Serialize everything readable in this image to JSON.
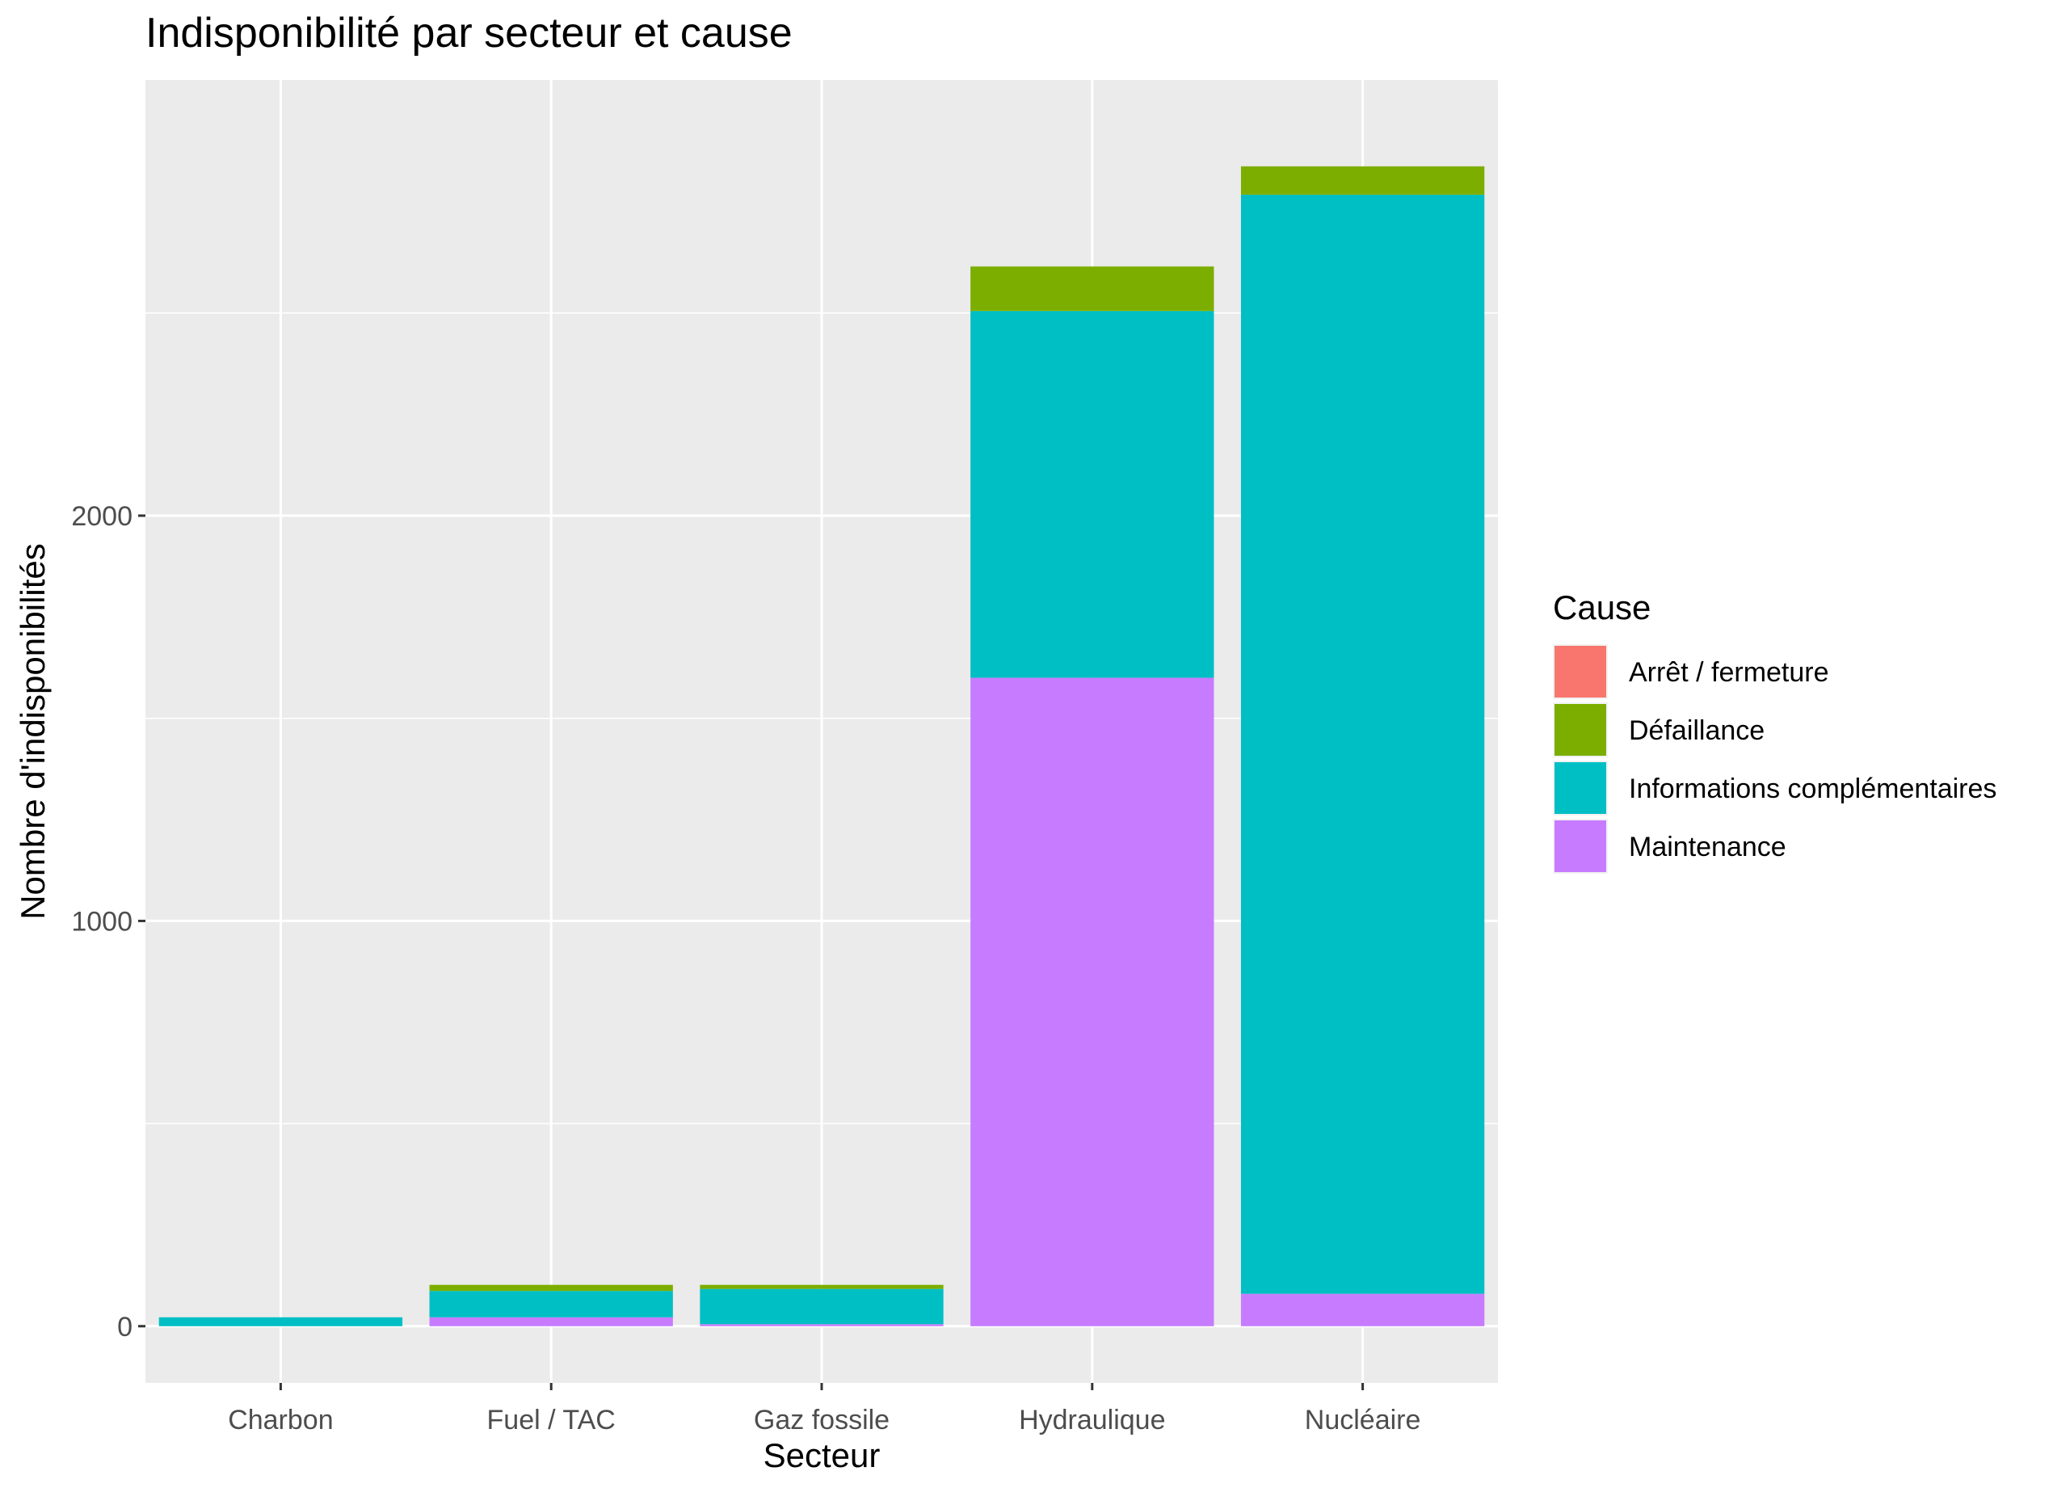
{
  "chart_data": {
    "type": "bar",
    "stacked": true,
    "title": "Indisponibilité par secteur et cause",
    "xlabel": "Secteur",
    "ylabel": "Nombre d'indisponibilités",
    "categories": [
      "Charbon",
      "Fuel / TAC",
      "Gaz fossile",
      "Hydraulique",
      "Nucléaire"
    ],
    "y_ticks": [
      0,
      1000,
      2000
    ],
    "y_tick_labels": [
      "0",
      "1000",
      "2000"
    ],
    "ylim": [
      -140,
      3075
    ],
    "grid": true,
    "legend": {
      "title": "Cause",
      "position": "right"
    },
    "series": [
      {
        "name": "Arrêt / fermeture",
        "color": "#F8766D",
        "values": [
          0,
          0,
          0,
          0,
          0
        ]
      },
      {
        "name": "Défaillance",
        "color": "#7CAE00",
        "values": [
          0,
          15,
          10,
          110,
          70
        ]
      },
      {
        "name": "Informations complémentaires",
        "color": "#00BFC4",
        "values": [
          22,
          65,
          87,
          905,
          2712
        ]
      },
      {
        "name": "Maintenance",
        "color": "#C77CFF",
        "values": [
          0,
          22,
          5,
          1600,
          80
        ]
      }
    ]
  }
}
